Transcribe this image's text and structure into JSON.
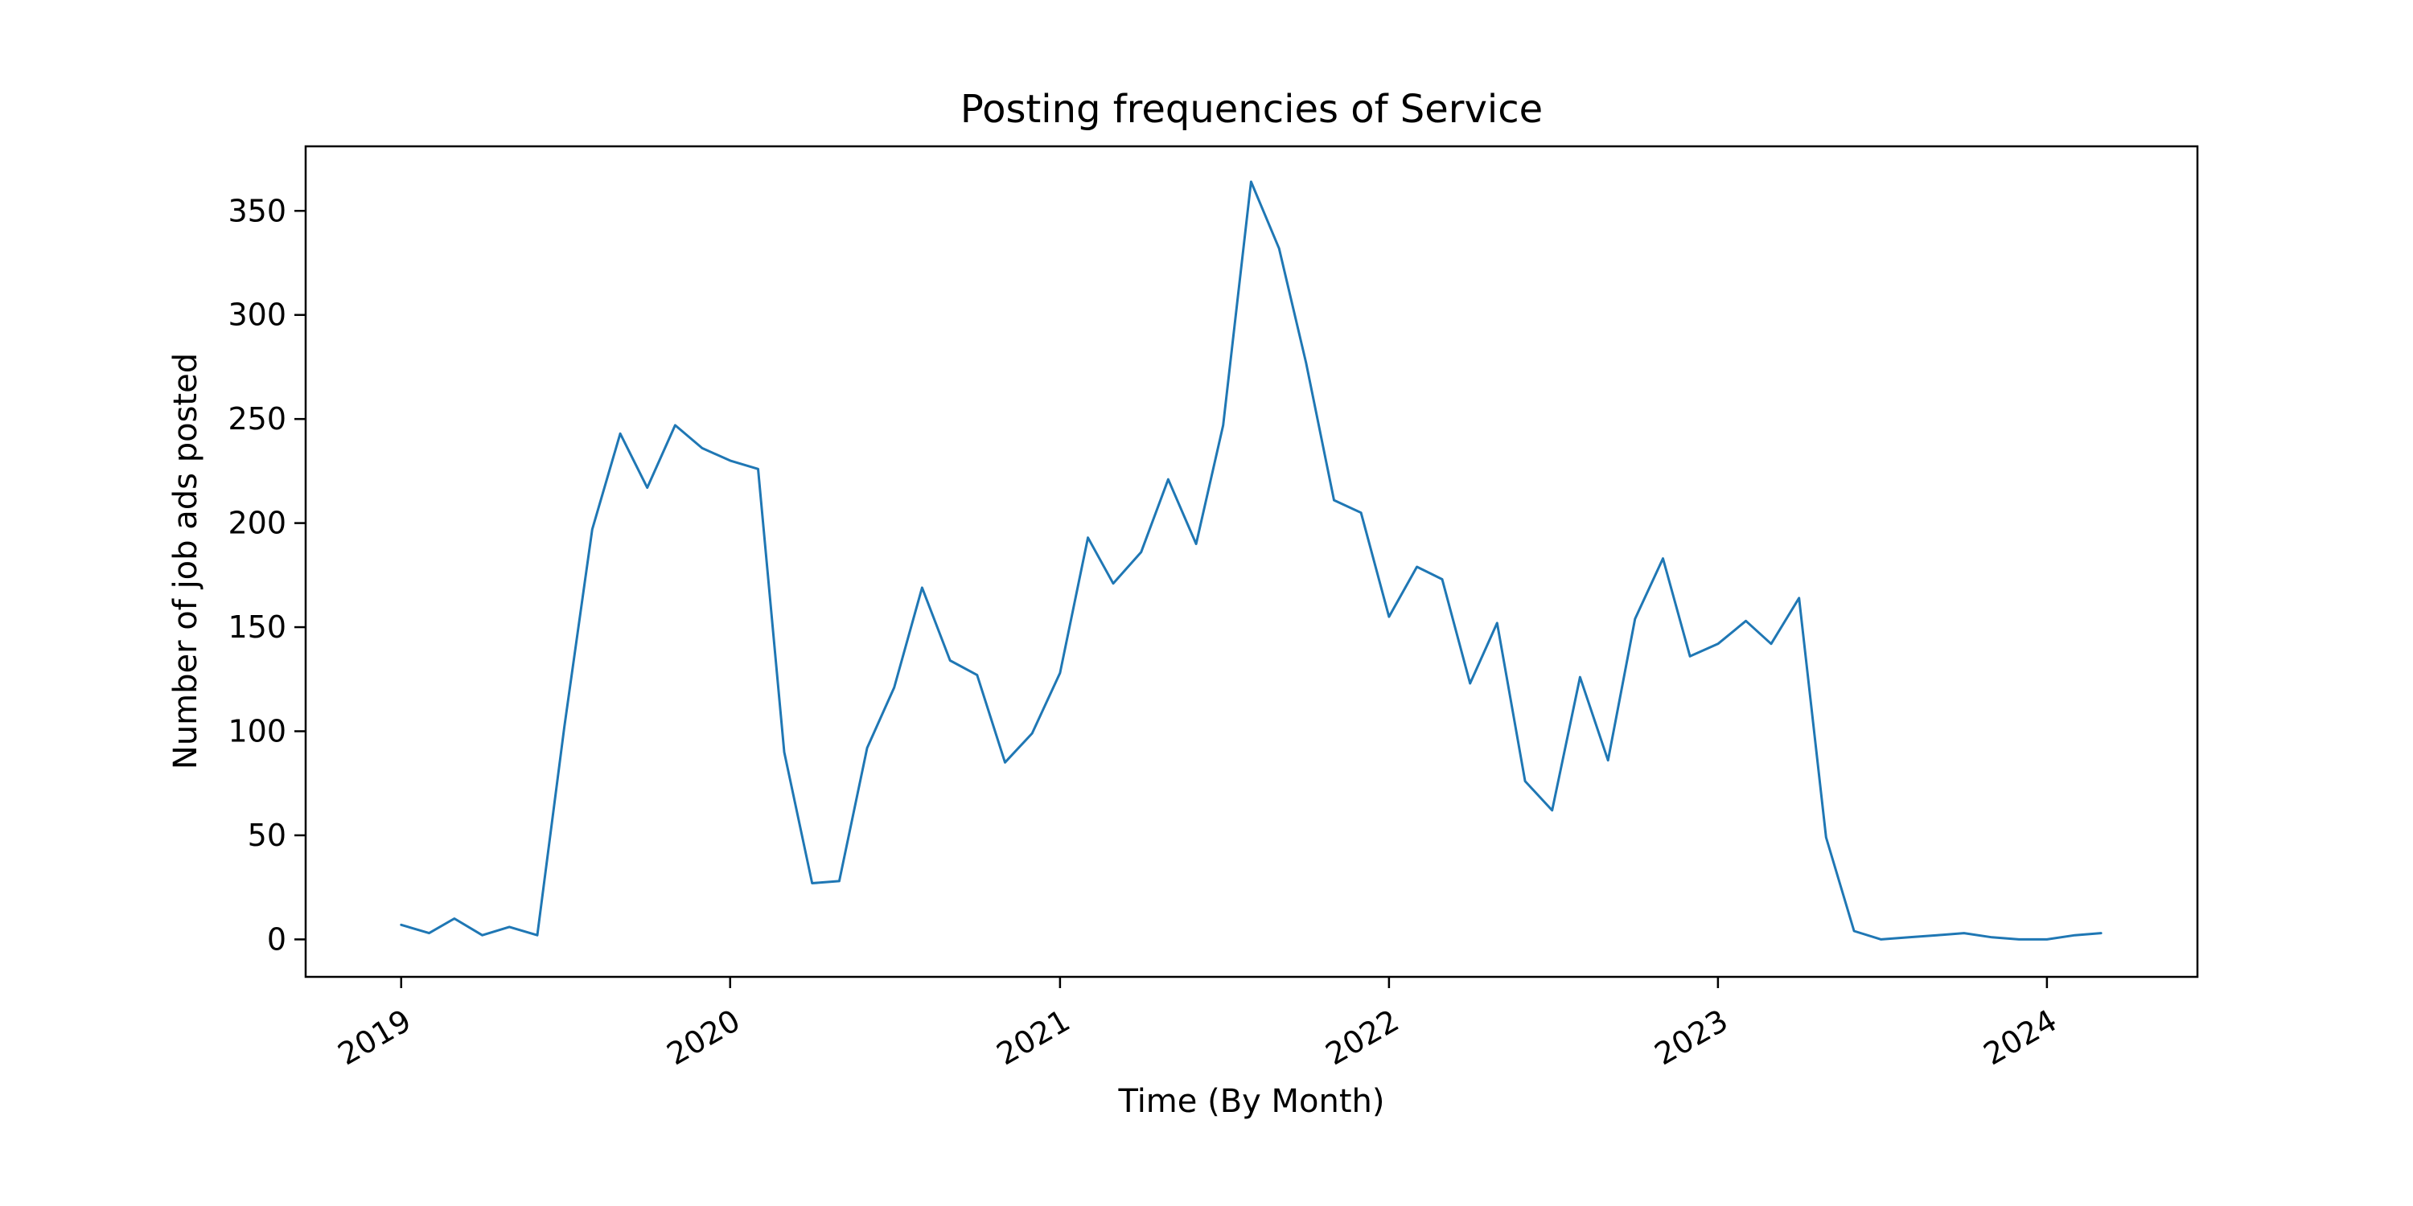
{
  "chart_data": {
    "type": "line",
    "title": "Posting frequencies of Service",
    "xlabel": "Time (By Month)",
    "ylabel": "Number of job ads posted",
    "x_tick_labels": [
      "2019",
      "2020",
      "2021",
      "2022",
      "2023",
      "2024"
    ],
    "y_tick_labels": [
      "0",
      "50",
      "100",
      "150",
      "200",
      "250",
      "300",
      "350"
    ],
    "y_ticks": [
      0,
      50,
      100,
      150,
      200,
      250,
      300,
      350
    ],
    "ylim": [
      -18,
      381
    ],
    "xlim": [
      "2018-09-17",
      "2024-06-16"
    ],
    "grid": false,
    "x": [
      "2019-01",
      "2019-02",
      "2019-03",
      "2019-04",
      "2019-05",
      "2019-06",
      "2019-07",
      "2019-08",
      "2019-09",
      "2019-10",
      "2019-11",
      "2019-12",
      "2020-01",
      "2020-02",
      "2020-03",
      "2020-04",
      "2020-05",
      "2020-06",
      "2020-07",
      "2020-08",
      "2020-09",
      "2020-10",
      "2020-11",
      "2020-12",
      "2021-01",
      "2021-02",
      "2021-03",
      "2021-04",
      "2021-05",
      "2021-06",
      "2021-07",
      "2021-08",
      "2021-09",
      "2021-10",
      "2021-11",
      "2021-12",
      "2022-01",
      "2022-02",
      "2022-03",
      "2022-04",
      "2022-05",
      "2022-06",
      "2022-07",
      "2022-08",
      "2022-09",
      "2022-10",
      "2022-11",
      "2022-12",
      "2023-01",
      "2023-02",
      "2023-03",
      "2023-04",
      "2023-05",
      "2023-06",
      "2023-07",
      "2023-08",
      "2023-09",
      "2023-10",
      "2023-11",
      "2023-12",
      "2024-01",
      "2024-02",
      "2024-03"
    ],
    "series": [
      {
        "color": "#1f77b4",
        "values": [
          7,
          3,
          10,
          2,
          6,
          2,
          102,
          197,
          243,
          217,
          247,
          236,
          230,
          226,
          90,
          27,
          28,
          92,
          121,
          169,
          134,
          127,
          85,
          99,
          128,
          193,
          171,
          186,
          221,
          190,
          247,
          364,
          332,
          277,
          211,
          205,
          155,
          179,
          173,
          123,
          152,
          76,
          62,
          126,
          86,
          154,
          183,
          136,
          142,
          153,
          142,
          164,
          49,
          4,
          0,
          1,
          2,
          3,
          1,
          0,
          0,
          2,
          3
        ]
      }
    ]
  }
}
